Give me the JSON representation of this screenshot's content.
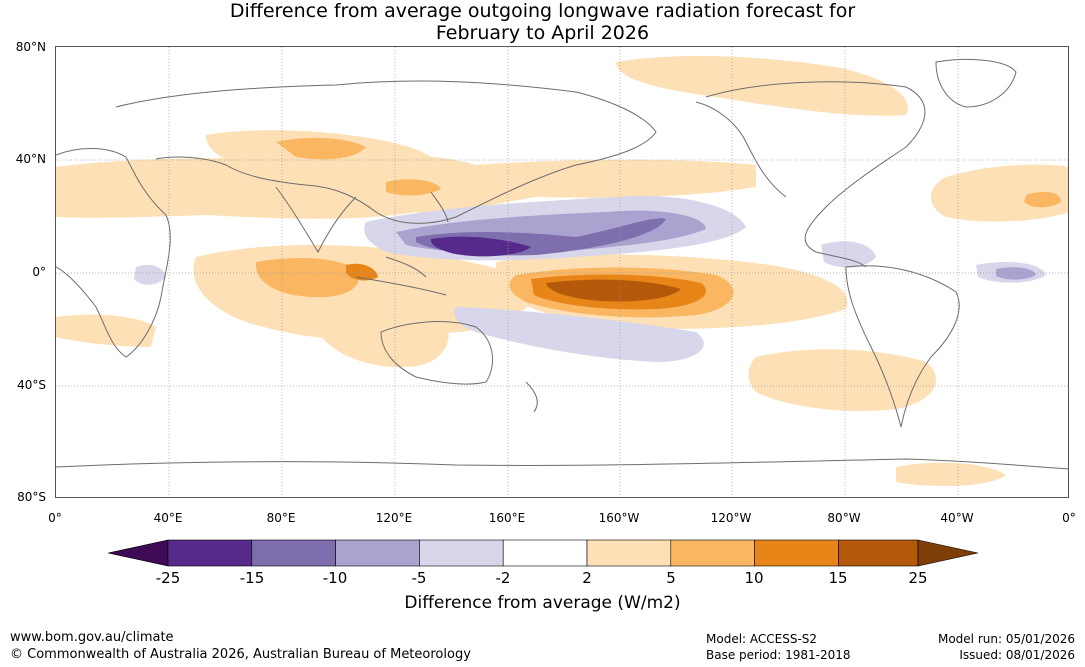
{
  "title": {
    "line1": "Difference from average outgoing longwave radiation forecast for",
    "line2": "February to April 2026"
  },
  "map": {
    "lat_labels": [
      "80°N",
      "40°N",
      "0°",
      "40°S",
      "80°S"
    ],
    "lon_labels": [
      "0°",
      "40°E",
      "80°E",
      "120°E",
      "160°E",
      "160°W",
      "120°W",
      "80°W",
      "40°W",
      "0°"
    ]
  },
  "legend": {
    "ticks": [
      "-25",
      "-15",
      "-10",
      "-5",
      "-2",
      "2",
      "5",
      "10",
      "15",
      "25"
    ],
    "colors": [
      "#3f0a55",
      "#562a8a",
      "#7e6ead",
      "#aaa3cf",
      "#d7d6ea",
      "#ffffff",
      "#fde0b5",
      "#fbb661",
      "#e78518",
      "#b4590a",
      "#7f3d08"
    ],
    "label": "Difference from average (W/m2)"
  },
  "footer": {
    "website": "www.bom.gov.au/climate",
    "copyright": "© Commonwealth of Australia 2026, Australian Bureau of Meteorology",
    "model": "Model: ACCESS-S2",
    "base_period": "Base period: 1981-2018",
    "model_run": "Model run: 05/01/2026",
    "issued": "Issued: 08/01/2026"
  }
}
